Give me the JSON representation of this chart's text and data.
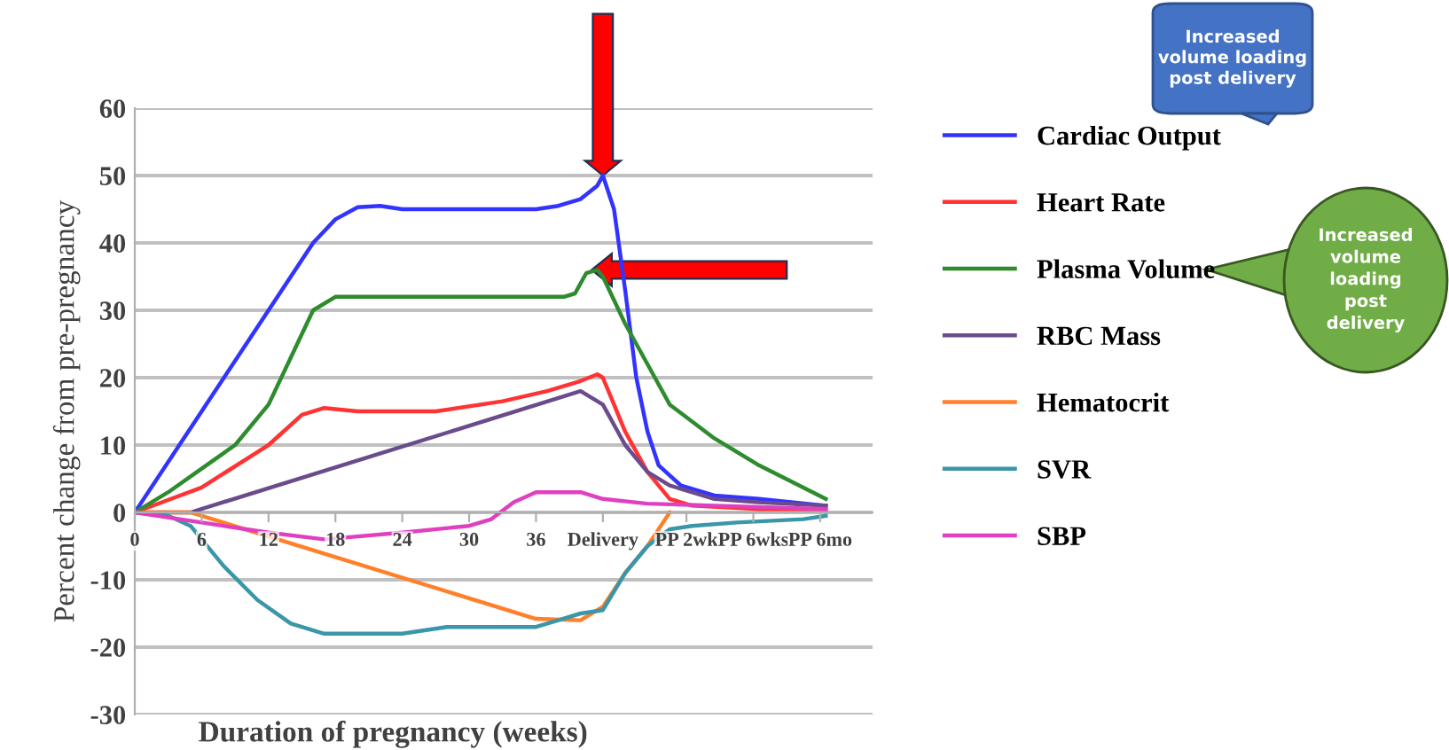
{
  "chart_data": {
    "type": "line",
    "xlabel": "Duration of pregnancy (weeks)",
    "ylabel": "Percent change from pre-pregnancy",
    "xlim": [
      0,
      66.2
    ],
    "ylim": [
      -30,
      60
    ],
    "yticks": [
      -30,
      -20,
      -10,
      0,
      10,
      20,
      30,
      40,
      50,
      60
    ],
    "xticks": [
      0,
      6,
      12,
      18,
      24,
      30,
      36,
      {
        "value": 42,
        "label": "Delivery"
      },
      {
        "value": 49.5,
        "label": "PP 2wk"
      },
      {
        "value": 55.5,
        "label": "PP 6wks"
      },
      {
        "value": 61.5,
        "label": "PP 6mo"
      }
    ],
    "grid": "y",
    "legend": "right",
    "marker": "none",
    "line_style": "solid",
    "annotations": [
      "Increased volume loading post delivery",
      "Increased volume loading post delivery"
    ],
    "series": [
      {
        "name": "Cardiac Output",
        "color": "#3333ff",
        "x": [
          0,
          6,
          12,
          16,
          18,
          20,
          22,
          24,
          30,
          36,
          38,
          40,
          41.5,
          42,
          43,
          44,
          45,
          46,
          47,
          49,
          52,
          56,
          62
        ],
        "values": [
          0,
          15,
          30,
          40,
          43.5,
          45.3,
          45.5,
          45,
          45,
          45,
          45.5,
          46.5,
          48.5,
          50,
          45,
          33,
          20,
          12,
          7,
          4,
          2.5,
          2,
          1
        ]
      },
      {
        "name": "Heart Rate",
        "color": "#ff3333",
        "x": [
          0,
          6,
          12,
          15,
          17,
          20,
          27,
          33,
          37,
          40,
          41.5,
          42,
          43,
          44,
          46,
          48,
          50,
          56,
          62
        ],
        "values": [
          0,
          3.7,
          10,
          14.5,
          15.5,
          15,
          15,
          16.5,
          18,
          19.5,
          20.5,
          20,
          16,
          12,
          6,
          2,
          1,
          0.5,
          0.5
        ]
      },
      {
        "name": "Plasma Volume",
        "color": "#2e8b2e",
        "x": [
          0,
          3,
          6,
          9,
          12,
          14,
          16,
          18,
          24,
          36,
          38.5,
          39.5,
          40.5,
          41.5,
          42,
          44,
          46,
          48,
          52,
          56,
          62
        ],
        "values": [
          0,
          3,
          6.5,
          10,
          16,
          23,
          30,
          32,
          32,
          32,
          32,
          32.5,
          35.5,
          36,
          35,
          28,
          22,
          16,
          11,
          7,
          2
        ]
      },
      {
        "name": "RBC Mass",
        "color": "#6a4c8c",
        "x": [
          0,
          5,
          40,
          42,
          44,
          46,
          48,
          52,
          56,
          62
        ],
        "values": [
          0,
          0,
          18,
          16,
          10,
          6,
          4,
          2,
          1.5,
          1
        ]
      },
      {
        "name": "Hematocrit",
        "color": "#ff7f2a",
        "x": [
          0,
          5,
          36,
          40,
          42,
          44,
          46,
          48
        ],
        "values": [
          0,
          0,
          -15.8,
          -16,
          -14,
          -9,
          -5,
          0
        ]
      },
      {
        "name": "SVR",
        "color": "#3a96a8",
        "x": [
          0,
          3,
          5,
          8,
          11,
          14,
          17,
          24,
          28,
          36,
          38,
          40,
          42,
          44,
          46,
          48,
          50,
          54,
          60,
          62
        ],
        "values": [
          0,
          -0.5,
          -2,
          -8,
          -13,
          -16.5,
          -18,
          -18,
          -17,
          -17,
          -16,
          -15,
          -14.5,
          -9,
          -5,
          -2.5,
          -2,
          -1.5,
          -1,
          -0.5
        ]
      },
      {
        "name": "SBP",
        "color": "#e040c0",
        "x": [
          0,
          6,
          12,
          17,
          24,
          30,
          32,
          34,
          36,
          38,
          40,
          42,
          46,
          52,
          62
        ],
        "values": [
          0,
          -1.5,
          -3,
          -4,
          -3,
          -2,
          -1,
          1.5,
          3,
          3,
          3,
          2,
          1.3,
          1,
          0.5
        ]
      }
    ]
  }
}
